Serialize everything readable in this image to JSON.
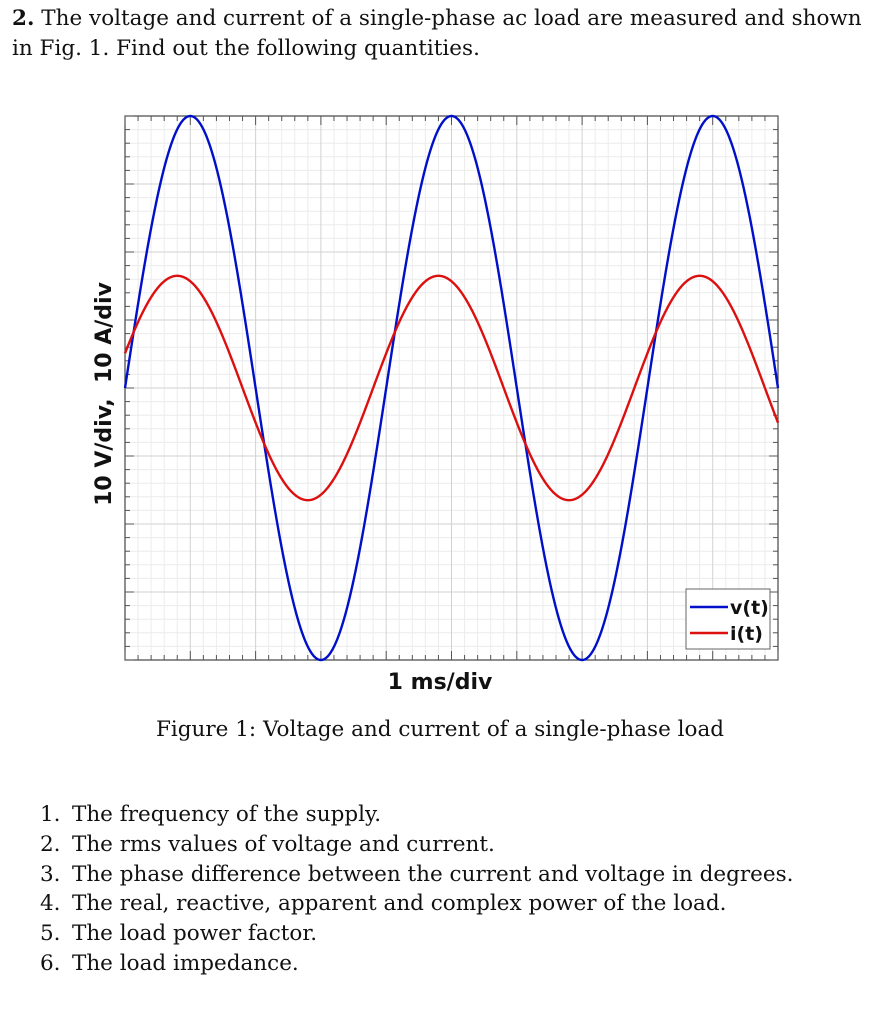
{
  "problem": {
    "number": "2.",
    "text": "The voltage and current of a single-phase ac load are measured and shown in Fig. 1. Find out the following quantities."
  },
  "figure": {
    "caption": "Figure 1: Voltage and current of a single-phase load"
  },
  "questions": [
    {
      "num": "1.",
      "text": "The frequency of the supply."
    },
    {
      "num": "2.",
      "text": "The rms values of voltage and current."
    },
    {
      "num": "3.",
      "text": "The phase difference between the current and voltage in degrees."
    },
    {
      "num": "4.",
      "text": "The real, reactive, apparent and complex power of the load."
    },
    {
      "num": "5.",
      "text": "The load power factor."
    },
    {
      "num": "6.",
      "text": "The load impedance."
    }
  ],
  "chart_data": {
    "type": "line",
    "xlabel": "1 ms/div",
    "ylabel": "10 V/div,  10 A/div",
    "x_divisions": [
      0,
      10
    ],
    "y_divisions": [
      -4,
      4
    ],
    "minor_per_division": 5,
    "grid": true,
    "legend_position": "bottom-right",
    "series": [
      {
        "name": "v(t)",
        "color": "#0010c8",
        "amplitude_div": 4,
        "period_div": 4,
        "phase_deg": 0
      },
      {
        "name": "i(t)",
        "color": "#dd1010",
        "amplitude_div": 1.65,
        "period_div": 4,
        "phase_deg": 18
      }
    ]
  }
}
